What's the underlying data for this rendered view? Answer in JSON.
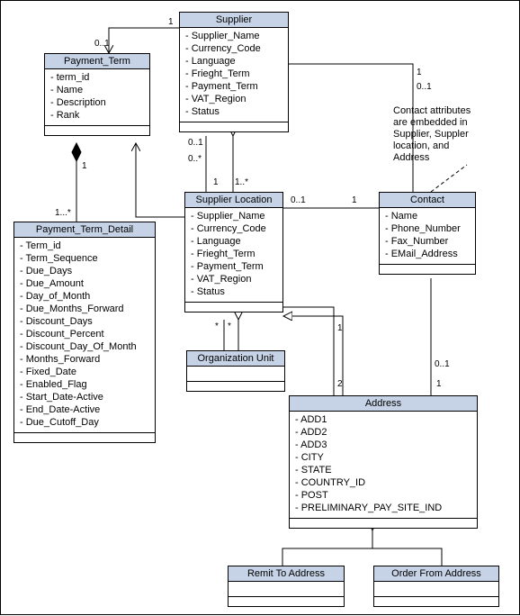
{
  "colors": {
    "header_bg": "#c6d3e6",
    "line": "#000000",
    "bg": "#ffffff",
    "text": "#000000"
  },
  "fontsize": {
    "title": 11,
    "attr": 11,
    "mult": 10
  },
  "note": {
    "text_lines": [
      "Contact attributes",
      "are embedded in",
      "Supplier, Suppler",
      "location, and",
      "Address"
    ]
  },
  "classes": {
    "supplier": {
      "name": "Supplier",
      "attrs": [
        "Supplier_Name",
        "Currency_Code",
        "Language",
        "Frieght_Term",
        "Payment_Term",
        "VAT_Region",
        "Status"
      ]
    },
    "payment_term": {
      "name": "Payment_Term",
      "attrs": [
        "term_id",
        "Name",
        "Description",
        "Rank"
      ]
    },
    "payment_term_detail": {
      "name": "Payment_Term_Detail",
      "attrs": [
        "Term_id",
        "Term_Sequence",
        "Due_Days",
        "Due_Amount",
        "Day_of_Month",
        "Due_Months_Forward",
        "Discount_Days",
        "Discount_Percent",
        "Discount_Day_Of_Month",
        "Months_Forward",
        "Fixed_Date",
        "Enabled_Flag",
        "Start_Date-Active",
        "End_Date-Active",
        "Due_Cutoff_Day"
      ]
    },
    "supplier_location": {
      "name": "Supplier Location",
      "attrs": [
        "Supplier_Name",
        "Currency_Code",
        "Language",
        "Frieght_Term",
        "Payment_Term",
        "VAT_Region",
        "Status"
      ]
    },
    "organization_unit": {
      "name": "Organization Unit",
      "attrs": []
    },
    "contact": {
      "name": "Contact",
      "attrs": [
        "Name",
        "Phone_Number",
        "Fax_Number",
        "EMail_Address"
      ]
    },
    "address": {
      "name": "Address",
      "attrs": [
        "ADD1",
        "ADD2",
        "ADD3",
        "CITY",
        "STATE",
        "COUNTRY_ID",
        "POST",
        "PRELIMINARY_PAY_SITE_IND"
      ]
    },
    "remit_to": {
      "name": "Remit To Address",
      "attrs": []
    },
    "order_from": {
      "name": "Order From Address",
      "attrs": []
    }
  },
  "multiplicities": {
    "supplier_pt_top": "1",
    "supplier_pt_bottom": "0..1",
    "pt_ptd_top": "1",
    "pt_ptd_bottom": "1...*",
    "supplier_sl_top_left": "0..1",
    "supplier_sl_top_right": "0..*",
    "supplier_sl_bot_left": "1",
    "supplier_sl_bot_right": "1..*",
    "sl_org_left": "*",
    "sl_org_right": "*",
    "sl_contact_left": "1",
    "sl_contact_right": "0..1",
    "supplier_contact_top": "1",
    "supplier_contact_bot": "0..1",
    "sl_addr_top": "1",
    "sl_addr_bot": "2",
    "addr_contact_top": "0..1",
    "addr_contact_bot": "1"
  }
}
